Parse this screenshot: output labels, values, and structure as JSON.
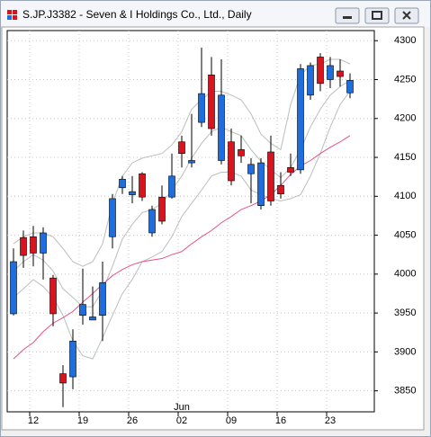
{
  "chart_data": {
    "type": "candlestick",
    "title": "S.JP.J3382 - Seven & I Holdings Co., Ltd., Daily",
    "month_label": "Jun",
    "categories": [
      null,
      null,
      "12",
      null,
      null,
      null,
      null,
      "19",
      null,
      null,
      null,
      null,
      "26",
      null,
      null,
      null,
      null,
      "02",
      null,
      null,
      null,
      null,
      "09",
      null,
      null,
      null,
      null,
      "16",
      null,
      null,
      null,
      null,
      "23",
      null,
      null
    ],
    "open": [
      3949,
      4047,
      4048,
      4027,
      3995,
      3872,
      3868,
      3947,
      3941,
      3947,
      4048,
      4111,
      4102,
      4129,
      4053,
      4099,
      4099,
      4170,
      4143,
      4195,
      4256,
      4146,
      4170,
      4160,
      4129,
      4088,
      4157,
      4114,
      4137,
      4134,
      4230,
      4279,
      4250,
      4261,
      4233
    ],
    "high": [
      4033,
      4056,
      4062,
      4060,
      3999,
      3883,
      3929,
      4007,
      3984,
      4016,
      4103,
      4126,
      4126,
      4131,
      4088,
      4114,
      4155,
      4178,
      4206,
      4291,
      4279,
      4276,
      4187,
      4178,
      4149,
      4149,
      4178,
      4131,
      4155,
      4270,
      4272,
      4284,
      4279,
      4276,
      4258
    ],
    "low": [
      3947,
      4008,
      4010,
      3993,
      3933,
      3829,
      3852,
      3935,
      3941,
      3914,
      4033,
      4103,
      4091,
      4094,
      4048,
      4064,
      4097,
      4137,
      4137,
      4189,
      4178,
      4141,
      4114,
      4143,
      4091,
      4083,
      4088,
      4097,
      4126,
      4129,
      4224,
      4235,
      4239,
      4241,
      4226
    ],
    "close": [
      4016,
      4024,
      4027,
      4053,
      3949,
      3860,
      3914,
      3961,
      3945,
      3989,
      4097,
      4122,
      4106,
      4099,
      4083,
      4068,
      4126,
      4155,
      4146,
      4232,
      4187,
      4230,
      4120,
      4152,
      4141,
      4143,
      4094,
      4103,
      4131,
      4264,
      4268,
      4245,
      4268,
      4254,
      4249
    ],
    "up_color": "#1e6ee0",
    "down_color": "#d8141e",
    "lines": [
      {
        "color": "#b8c0b8",
        "values": [
          4039,
          4048,
          4053,
          4053,
          4048,
          4033,
          4016,
          4010,
          4016,
          4039,
          4091,
          4126,
          4143,
          4149,
          4152,
          4155,
          4166,
          4183,
          4212,
          4224,
          4235,
          4235,
          4230,
          4224,
          4206,
          4180,
          4168,
          4160,
          4218,
          4256,
          4268,
          4270,
          4276,
          4276,
          4270
        ]
      },
      {
        "color": "#b8c0b8",
        "values": [
          4004,
          4016,
          4025,
          4018,
          4004,
          3981,
          3970,
          3958,
          3958,
          3979,
          4010,
          4045,
          4064,
          4079,
          4083,
          4091,
          4108,
          4126,
          4149,
          4168,
          4183,
          4189,
          4183,
          4178,
          4160,
          4145,
          4134,
          4124,
          4137,
          4160,
          4189,
          4212,
          4230,
          4241,
          4249
        ]
      },
      {
        "color": "#b8c0b8",
        "values": [
          3970,
          3981,
          3993,
          3984,
          3970,
          3947,
          3914,
          3895,
          3891,
          3918,
          3947,
          3975,
          3993,
          4016,
          4022,
          4029,
          4048,
          4074,
          4091,
          4108,
          4126,
          4131,
          4131,
          4126,
          4108,
          4102,
          4097,
          4094,
          4097,
          4102,
          4126,
          4155,
          4189,
          4218,
          4235
        ]
      },
      {
        "color": "#e8508a",
        "values": [
          3891,
          3903,
          3912,
          3926,
          3937,
          3944,
          3952,
          3964,
          3975,
          3987,
          3998,
          4006,
          4012,
          4016,
          4018,
          4020,
          4025,
          4029,
          4039,
          4048,
          4056,
          4066,
          4074,
          4083,
          4088,
          4094,
          4102,
          4114,
          4128,
          4139,
          4146,
          4155,
          4163,
          4170,
          4178
        ]
      }
    ],
    "ylim": [
      3823,
      4313
    ],
    "yticks": [
      3850,
      3900,
      3950,
      4000,
      4050,
      4100,
      4150,
      4200,
      4250,
      4300
    ],
    "grid": true
  }
}
